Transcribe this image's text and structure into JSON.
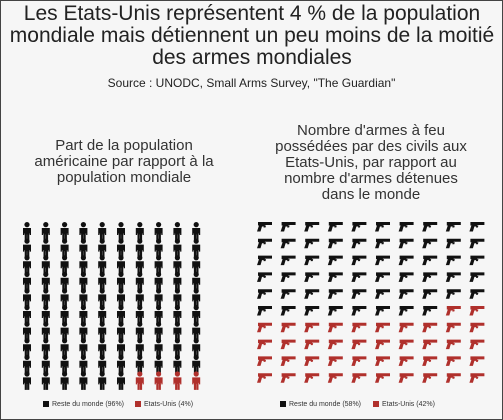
{
  "title": "Les Etats-Unis représentent 4 % de la population mondiale mais détiennent un peu moins de la moitié des armes mondiales",
  "source": "Source : UNODC, Small Arms Survey, \"The Guardian\"",
  "chart_data": [
    {
      "type": "pictograph",
      "icon": "person",
      "title": "Part de la population américaine par rapport à la population mondiale",
      "series": [
        {
          "name": "Reste du monde",
          "color": "#111111",
          "values": [
            96
          ],
          "value_labels": [
            "(96%)"
          ]
        },
        {
          "name": "Etats-Unis",
          "color": "#b0302c",
          "values": [
            4
          ],
          "value_labels": [
            "(4%)"
          ]
        }
      ]
    },
    {
      "type": "pictograph",
      "icon": "gun",
      "title": "Nombre d'armes à feu possédées par des civils aux Etats-Unis, par rapport au nombre d'armes détenues dans le monde",
      "series": [
        {
          "name": "Reste du monde",
          "color": "#111111",
          "values": [
            58
          ],
          "value_labels": [
            "(58%)"
          ]
        },
        {
          "name": "Etats-Unis",
          "color": "#b0302c",
          "values": [
            42
          ],
          "value_labels": [
            "(42%)"
          ]
        }
      ]
    }
  ]
}
